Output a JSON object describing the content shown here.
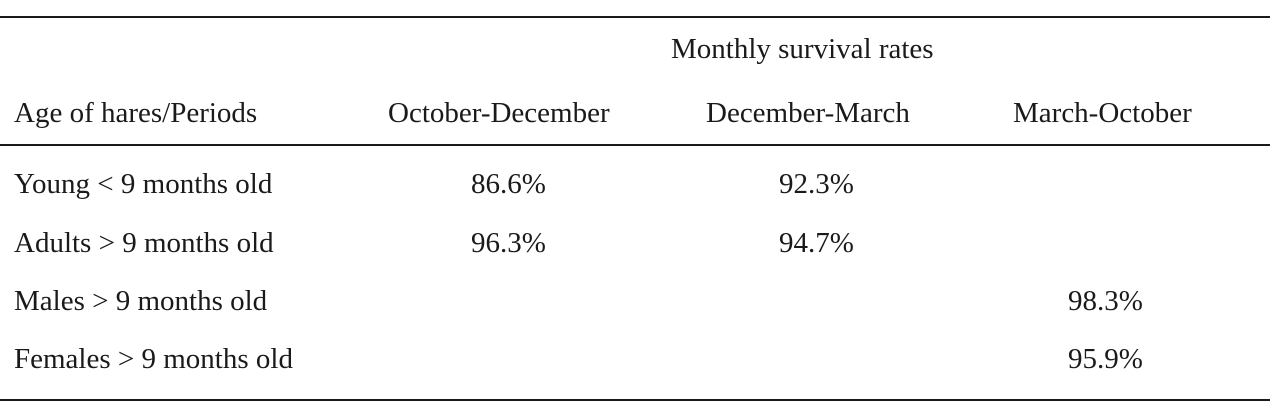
{
  "table": {
    "spanner_header": "Monthly survival rates",
    "columns": [
      "Age of hares/Periods",
      "October-December",
      "December-March",
      "March-October"
    ],
    "rows": [
      {
        "label": "Young < 9 months old",
        "oct_dec": "86.6%",
        "dec_mar": "92.3%",
        "mar_oct": ""
      },
      {
        "label": "Adults > 9 months old",
        "oct_dec": "96.3%",
        "dec_mar": "94.7%",
        "mar_oct": ""
      },
      {
        "label": "Males > 9 months old",
        "oct_dec": "",
        "dec_mar": "",
        "mar_oct": "98.3%"
      },
      {
        "label": "Females > 9 months old",
        "oct_dec": "",
        "dec_mar": "",
        "mar_oct": "95.9%"
      }
    ]
  }
}
